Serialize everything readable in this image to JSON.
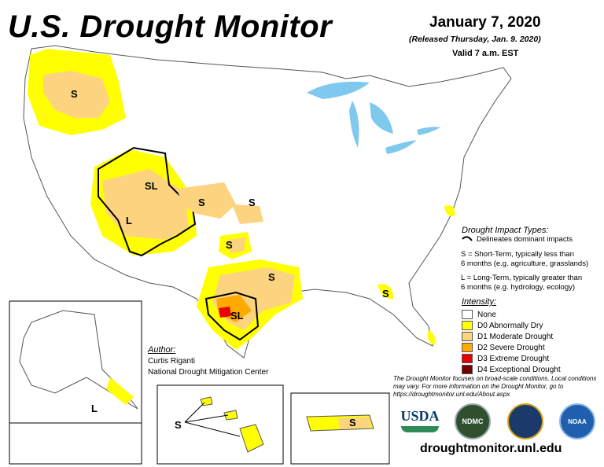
{
  "header": {
    "title": "U.S. Drought Monitor",
    "date": "January 7, 2020",
    "released": "(Released Thursday, Jan. 9. 2020)",
    "valid": "Valid 7 a.m. EST"
  },
  "impact_types": {
    "title": "Drought Impact Types:",
    "delineates": "Delineates dominant impacts",
    "short_term_1": "S = Short-Term, typically less than",
    "short_term_2": "6 months (e.g. agriculture, grasslands)",
    "long_term_1": "L = Long-Term, typically greater than",
    "long_term_2": "6 months (e.g. hydrology, ecology)"
  },
  "intensity": {
    "title": "Intensity:",
    "items": [
      {
        "label": "None",
        "color": "#ffffff"
      },
      {
        "label": "D0 Abnormally Dry",
        "color": "#ffff00"
      },
      {
        "label": "D1 Moderate Drought",
        "color": "#fcd37f"
      },
      {
        "label": "D2 Severe Drought",
        "color": "#ffaa00"
      },
      {
        "label": "D3 Extreme Drought",
        "color": "#e60000"
      },
      {
        "label": "D4 Exceptional Drought",
        "color": "#730000"
      }
    ]
  },
  "author": {
    "label": "Author:",
    "name": "Curtis Riganti",
    "org": "National Drought Mitigation Center"
  },
  "disclaimer": "The Drought Monitor focuses on broad-scale conditions. Local conditions may vary. For more information on the Drought Monitor, go to https://droughtmonitor.unl.edu/About.aspx",
  "url": "droughtmonitor.unl.edu",
  "logos": {
    "usda": "USDA",
    "ndmc": "NDMC",
    "doc": "",
    "noaa": "NOAA"
  },
  "map_labels": {
    "s": "S",
    "l": "L",
    "sl": "SL"
  }
}
